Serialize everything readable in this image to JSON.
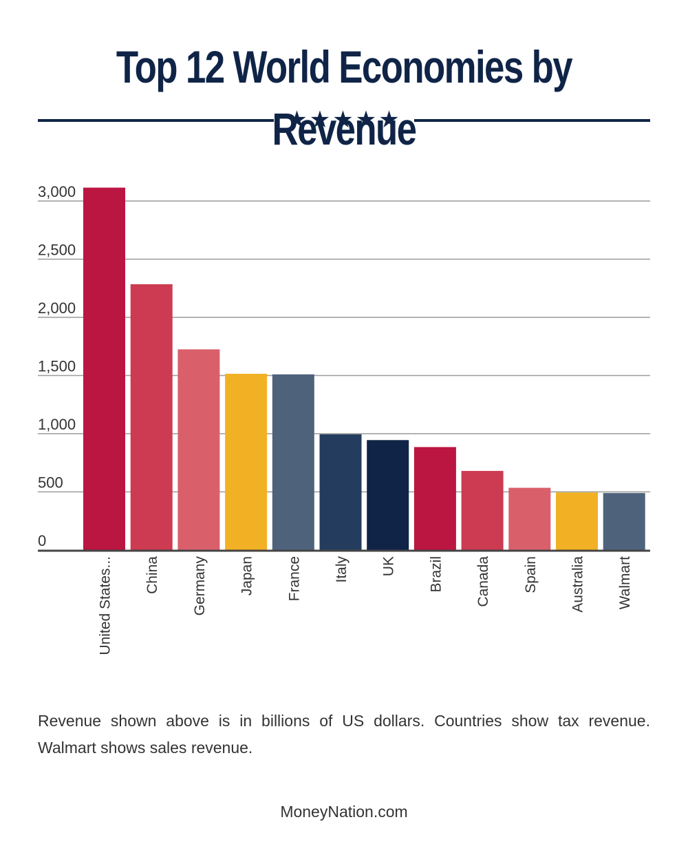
{
  "title": "Top 12 World Economies by Revenue",
  "stars": "★★★★★",
  "note": "Revenue shown above is in billions of US dollars. Countries show tax revenue. Walmart shows sales revenue.",
  "footer": "MoneyNation.com",
  "chart_data": {
    "type": "bar",
    "title": "Top 12 World Economies by Revenue",
    "xlabel": "",
    "ylabel": "",
    "ylim": [
      0,
      3000
    ],
    "grid": true,
    "yticks": [
      0,
      500,
      1000,
      1500,
      2000,
      2500,
      3000
    ],
    "ytick_labels": [
      "0",
      "500",
      "1,000",
      "1,500",
      "2,000",
      "2,500",
      "3,000"
    ],
    "categories": [
      "United States...",
      "China",
      "Germany",
      "Japan",
      "France",
      "Italy",
      "UK",
      "Brazil",
      "Canada",
      "Spain",
      "Australia",
      "Walmart"
    ],
    "values": [
      3115,
      2285,
      1725,
      1515,
      1510,
      995,
      945,
      885,
      680,
      535,
      495,
      490
    ],
    "colors": [
      "#bb1541",
      "#cc3b52",
      "#d9606b",
      "#f2b124",
      "#4e627c",
      "#243d5e",
      "#0f2447",
      "#bb1541",
      "#cc3b52",
      "#d9606b",
      "#f2b124",
      "#4e627c"
    ]
  }
}
